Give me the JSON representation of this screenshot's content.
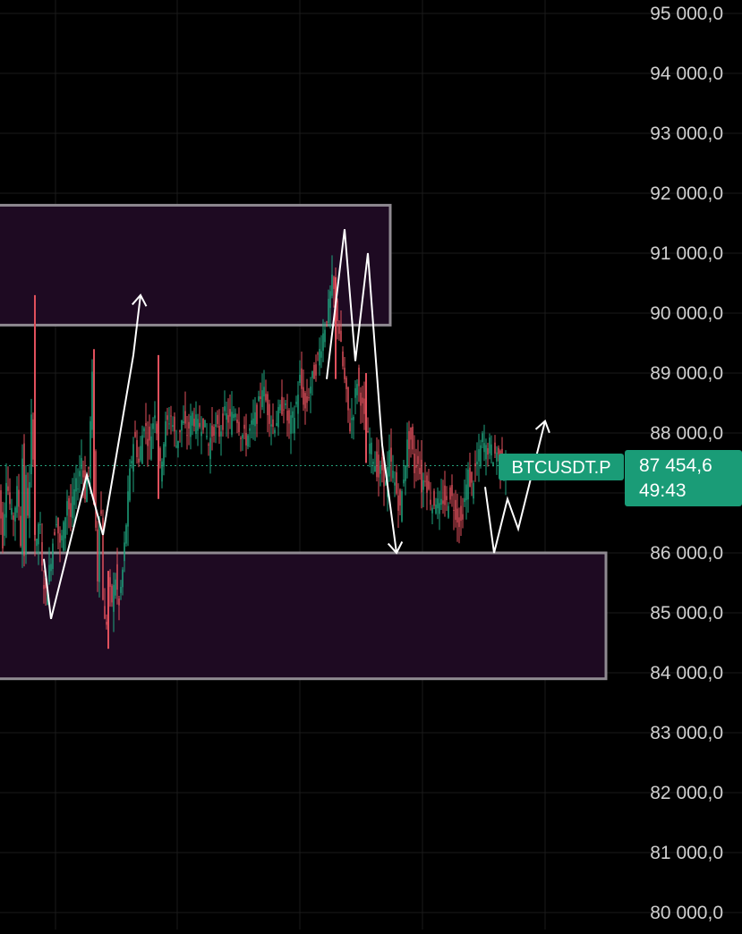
{
  "chart_data": {
    "type": "candlestick",
    "symbol": "BTCUSDT.P",
    "current_price": 87454.6,
    "current_price_label": "87 454,6",
    "countdown": "49:43",
    "ylim": [
      80000,
      95000
    ],
    "y_ticks": [
      95000,
      94000,
      93000,
      92000,
      91000,
      90000,
      89000,
      88000,
      87000,
      86000,
      85000,
      84000,
      83000,
      82000,
      81000,
      80000
    ],
    "y_tick_labels": [
      "95 000,0",
      "94 000,0",
      "93 000,0",
      "92 000,0",
      "91 000,0",
      "90 000,0",
      "89 000,0",
      "88 000,0",
      "87 000,0",
      "86 000,0",
      "85 000,0",
      "84 000,0",
      "83 000,0",
      "82 000,0",
      "81 000,0",
      "80 000,0"
    ],
    "grid": true,
    "colors": {
      "background": "#000000",
      "grid": "#1a1a1a",
      "up": "#1fa57f",
      "down": "#e0505c",
      "zone_fill": "#1e0a22",
      "zone_stroke": "#8f8a91",
      "arrow": "#ffffff",
      "price_line": "#26a17b",
      "tag_bg": "#1a9c77",
      "tag_text": "#ffffff",
      "axis_text": "#cfcfcf"
    },
    "supply_zone": {
      "from": 89800,
      "to": 91800
    },
    "demand_zone": {
      "from": 83900,
      "to": 86000
    },
    "price_path": [
      [
        0,
        87600
      ],
      [
        4,
        87000
      ],
      [
        8,
        86200
      ],
      [
        12,
        87300
      ],
      [
        16,
        86800
      ],
      [
        19,
        86500
      ],
      [
        22,
        86800
      ],
      [
        25,
        87100
      ],
      [
        28,
        86200
      ],
      [
        30,
        87600
      ],
      [
        32,
        86000
      ],
      [
        34,
        87200
      ],
      [
        36,
        86700
      ],
      [
        39,
        87300
      ],
      [
        41,
        89100
      ],
      [
        43,
        86300
      ],
      [
        46,
        86100
      ],
      [
        49,
        86700
      ],
      [
        52,
        85700
      ],
      [
        56,
        85300
      ],
      [
        60,
        85700
      ],
      [
        64,
        86200
      ],
      [
        68,
        86600
      ],
      [
        72,
        86100
      ],
      [
        76,
        86400
      ],
      [
        80,
        86900
      ],
      [
        84,
        86600
      ],
      [
        88,
        87000
      ],
      [
        92,
        87200
      ],
      [
        96,
        87600
      ],
      [
        100,
        87000
      ],
      [
        104,
        87400
      ],
      [
        108,
        88900
      ],
      [
        111,
        86800
      ],
      [
        114,
        85600
      ],
      [
        117,
        87300
      ],
      [
        120,
        85300
      ],
      [
        123,
        84600
      ],
      [
        126,
        85400
      ],
      [
        130,
        85200
      ],
      [
        134,
        85600
      ],
      [
        138,
        85100
      ],
      [
        142,
        85700
      ],
      [
        146,
        86500
      ],
      [
        150,
        87300
      ],
      [
        155,
        88000
      ],
      [
        160,
        87500
      ],
      [
        166,
        88200
      ],
      [
        172,
        87800
      ],
      [
        178,
        88400
      ],
      [
        184,
        87400
      ],
      [
        190,
        88100
      ],
      [
        196,
        88300
      ],
      [
        202,
        87800
      ],
      [
        208,
        88200
      ],
      [
        214,
        88000
      ],
      [
        220,
        88300
      ],
      [
        226,
        88100
      ],
      [
        232,
        88200
      ],
      [
        238,
        87800
      ],
      [
        244,
        88100
      ],
      [
        250,
        88000
      ],
      [
        256,
        88300
      ],
      [
        262,
        88200
      ],
      [
        268,
        88400
      ],
      [
        274,
        88000
      ],
      [
        280,
        87900
      ],
      [
        286,
        88100
      ],
      [
        292,
        88300
      ],
      [
        298,
        88800
      ],
      [
        304,
        88400
      ],
      [
        310,
        88100
      ],
      [
        316,
        88300
      ],
      [
        322,
        88500
      ],
      [
        328,
        88100
      ],
      [
        334,
        88300
      ],
      [
        340,
        88900
      ],
      [
        346,
        88400
      ],
      [
        352,
        88800
      ],
      [
        358,
        89100
      ],
      [
        364,
        89500
      ],
      [
        368,
        89800
      ],
      [
        372,
        90100
      ],
      [
        376,
        90500
      ],
      [
        380,
        90200
      ],
      [
        384,
        89700
      ],
      [
        388,
        89100
      ],
      [
        392,
        88600
      ],
      [
        396,
        88100
      ],
      [
        400,
        88400
      ],
      [
        404,
        88900
      ],
      [
        408,
        88600
      ],
      [
        412,
        88200
      ],
      [
        416,
        87900
      ],
      [
        420,
        87700
      ],
      [
        424,
        87500
      ],
      [
        428,
        87300
      ],
      [
        432,
        87400
      ],
      [
        436,
        87100
      ],
      [
        440,
        87600
      ],
      [
        444,
        87300
      ],
      [
        448,
        87000
      ],
      [
        452,
        86700
      ],
      [
        456,
        87300
      ],
      [
        460,
        87800
      ],
      [
        464,
        87900
      ],
      [
        468,
        87400
      ],
      [
        472,
        87600
      ],
      [
        476,
        87100
      ],
      [
        480,
        87300
      ],
      [
        484,
        87000
      ],
      [
        488,
        86800
      ],
      [
        492,
        86900
      ],
      [
        496,
        86700
      ],
      [
        500,
        86900
      ],
      [
        504,
        86800
      ],
      [
        508,
        87000
      ],
      [
        512,
        86800
      ],
      [
        516,
        86600
      ],
      [
        520,
        86500
      ],
      [
        524,
        86900
      ],
      [
        528,
        87300
      ],
      [
        532,
        87100
      ],
      [
        536,
        87400
      ],
      [
        540,
        87600
      ],
      [
        544,
        87900
      ],
      [
        548,
        87700
      ],
      [
        552,
        87800
      ],
      [
        556,
        87600
      ],
      [
        560,
        87700
      ],
      [
        564,
        87500
      ],
      [
        568,
        87454.6
      ]
    ],
    "spikes": [
      {
        "x": 42,
        "high": 90300,
        "low": 86300
      },
      {
        "x": 108,
        "high": 89400,
        "low": 86800
      },
      {
        "x": 124,
        "high": 85700,
        "low": 84400
      },
      {
        "x": 180,
        "high": 89300,
        "low": 86900
      },
      {
        "x": 378,
        "high": 90600,
        "low": 88900
      },
      {
        "x": 412,
        "high": 89000,
        "low": 87500
      }
    ],
    "arrows": [
      {
        "points": [
          [
            52,
            85900
          ],
          [
            60,
            84900
          ],
          [
            100,
            87300
          ],
          [
            118,
            86300
          ],
          [
            152,
            89300
          ],
          [
            160,
            90300
          ]
        ]
      },
      {
        "points": [
          [
            368,
            88900
          ],
          [
            388,
            91400
          ],
          [
            400,
            89200
          ],
          [
            414,
            91000
          ],
          [
            430,
            87800
          ],
          [
            446,
            86000
          ]
        ]
      },
      {
        "points": [
          [
            545,
            87100
          ],
          [
            555,
            86000
          ],
          [
            570,
            86900
          ],
          [
            582,
            86400
          ],
          [
            612,
            88200
          ]
        ]
      }
    ]
  }
}
